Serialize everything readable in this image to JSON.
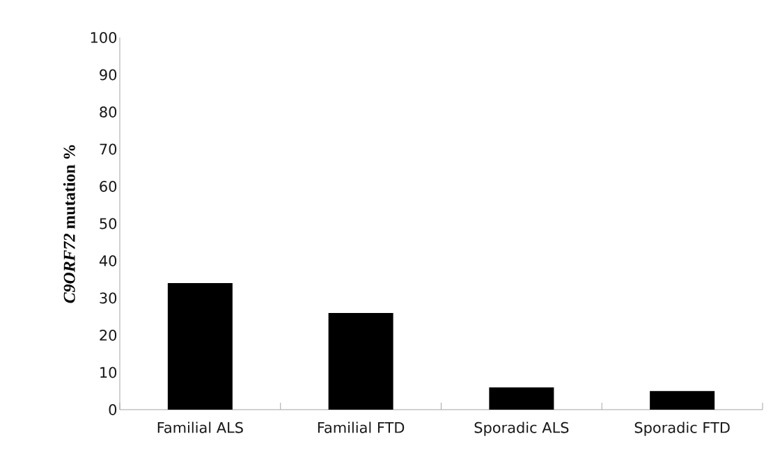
{
  "chart_data": {
    "type": "bar",
    "ylabel": "*C9ORF72* mutation %",
    "categories": [
      "Familial ALS",
      "Familial FTD",
      "Sporadic ALS",
      "Sporadic FTD"
    ],
    "values": [
      34,
      26,
      6,
      5
    ],
    "color": "#000000",
    "ylim": [
      0,
      100
    ],
    "yticks": [
      0,
      10,
      20,
      30,
      40,
      50,
      60,
      70,
      80,
      90,
      100
    ],
    "grid": false
  }
}
